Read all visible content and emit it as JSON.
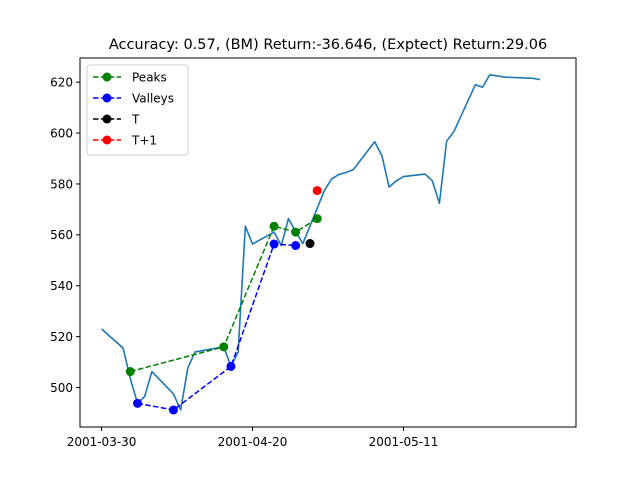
{
  "chart_data": {
    "type": "line",
    "title": "Accuracy: 0.57, (BM) Return:-36.646, (Exptect) Return:29.06",
    "xlabel": "",
    "ylabel": "",
    "xlim": [
      "2001-03-27",
      "2001-06-04"
    ],
    "ylim": [
      484.5,
      629.5
    ],
    "grid": false,
    "legend_position": "upper-left",
    "x_ticks": [
      {
        "date": "2001-03-30",
        "label": "2001-03-30"
      },
      {
        "date": "2001-04-20",
        "label": "2001-04-20"
      },
      {
        "date": "2001-05-11",
        "label": "2001-05-11"
      }
    ],
    "y_ticks": [
      500,
      520,
      540,
      560,
      580,
      600,
      620
    ],
    "colors": {
      "price": "#1f77b4",
      "peaks": "#008000",
      "valleys": "#0000ff",
      "t": "#000000",
      "t_plus_1": "#ff0000"
    },
    "series": [
      {
        "key": "price",
        "style": "solid",
        "x": [
          "2001-03-30",
          "2001-04-02",
          "2001-04-03",
          "2001-04-04",
          "2001-04-05",
          "2001-04-06",
          "2001-04-09",
          "2001-04-10",
          "2001-04-11",
          "2001-04-12",
          "2001-04-16",
          "2001-04-17",
          "2001-04-18",
          "2001-04-19",
          "2001-04-20",
          "2001-04-23",
          "2001-04-24",
          "2001-04-25",
          "2001-04-26",
          "2001-04-27",
          "2001-04-30",
          "2001-05-01",
          "2001-05-02",
          "2001-05-03",
          "2001-05-04",
          "2001-05-07",
          "2001-05-08",
          "2001-05-09",
          "2001-05-10",
          "2001-05-11",
          "2001-05-14",
          "2001-05-15",
          "2001-05-16",
          "2001-05-17",
          "2001-05-18",
          "2001-05-21",
          "2001-05-22",
          "2001-05-23",
          "2001-05-24",
          "2001-05-25",
          "2001-05-29",
          "2001-05-30"
        ],
        "y": [
          523.0,
          515.5,
          503.5,
          493.8,
          496.5,
          506.3,
          497.5,
          491.2,
          507.7,
          514.0,
          516.0,
          508.3,
          513.9,
          563.4,
          556.4,
          561.1,
          555.8,
          566.4,
          561.2,
          556.6,
          577.4,
          582.0,
          583.7,
          584.5,
          585.6,
          596.6,
          591.1,
          578.8,
          581.2,
          582.9,
          583.9,
          581.3,
          572.4,
          596.8,
          600.5,
          619.0,
          618.0,
          622.9,
          622.5,
          622.0,
          621.5,
          621.0
        ]
      },
      {
        "key": "peaks",
        "name": "Peaks",
        "style": "dashed",
        "marker": "circle",
        "x": [
          "2001-04-03",
          "2001-04-16",
          "2001-04-23",
          "2001-04-26",
          "2001-04-29"
        ],
        "y": [
          506.3,
          516.0,
          563.4,
          561.1,
          566.4
        ]
      },
      {
        "key": "valleys",
        "name": "Valleys",
        "style": "dashed",
        "marker": "circle",
        "x": [
          "2001-04-04",
          "2001-04-09",
          "2001-04-17",
          "2001-04-23",
          "2001-04-26"
        ],
        "y": [
          493.8,
          491.2,
          508.3,
          556.4,
          555.8
        ]
      },
      {
        "key": "t",
        "name": "T",
        "style": "dashed",
        "marker": "circle",
        "x": [
          "2001-04-28"
        ],
        "y": [
          556.6
        ]
      },
      {
        "key": "t_plus_1",
        "name": "T+1",
        "style": "dashed",
        "marker": "circle",
        "x": [
          "2001-04-29"
        ],
        "y": [
          577.4
        ]
      }
    ]
  }
}
